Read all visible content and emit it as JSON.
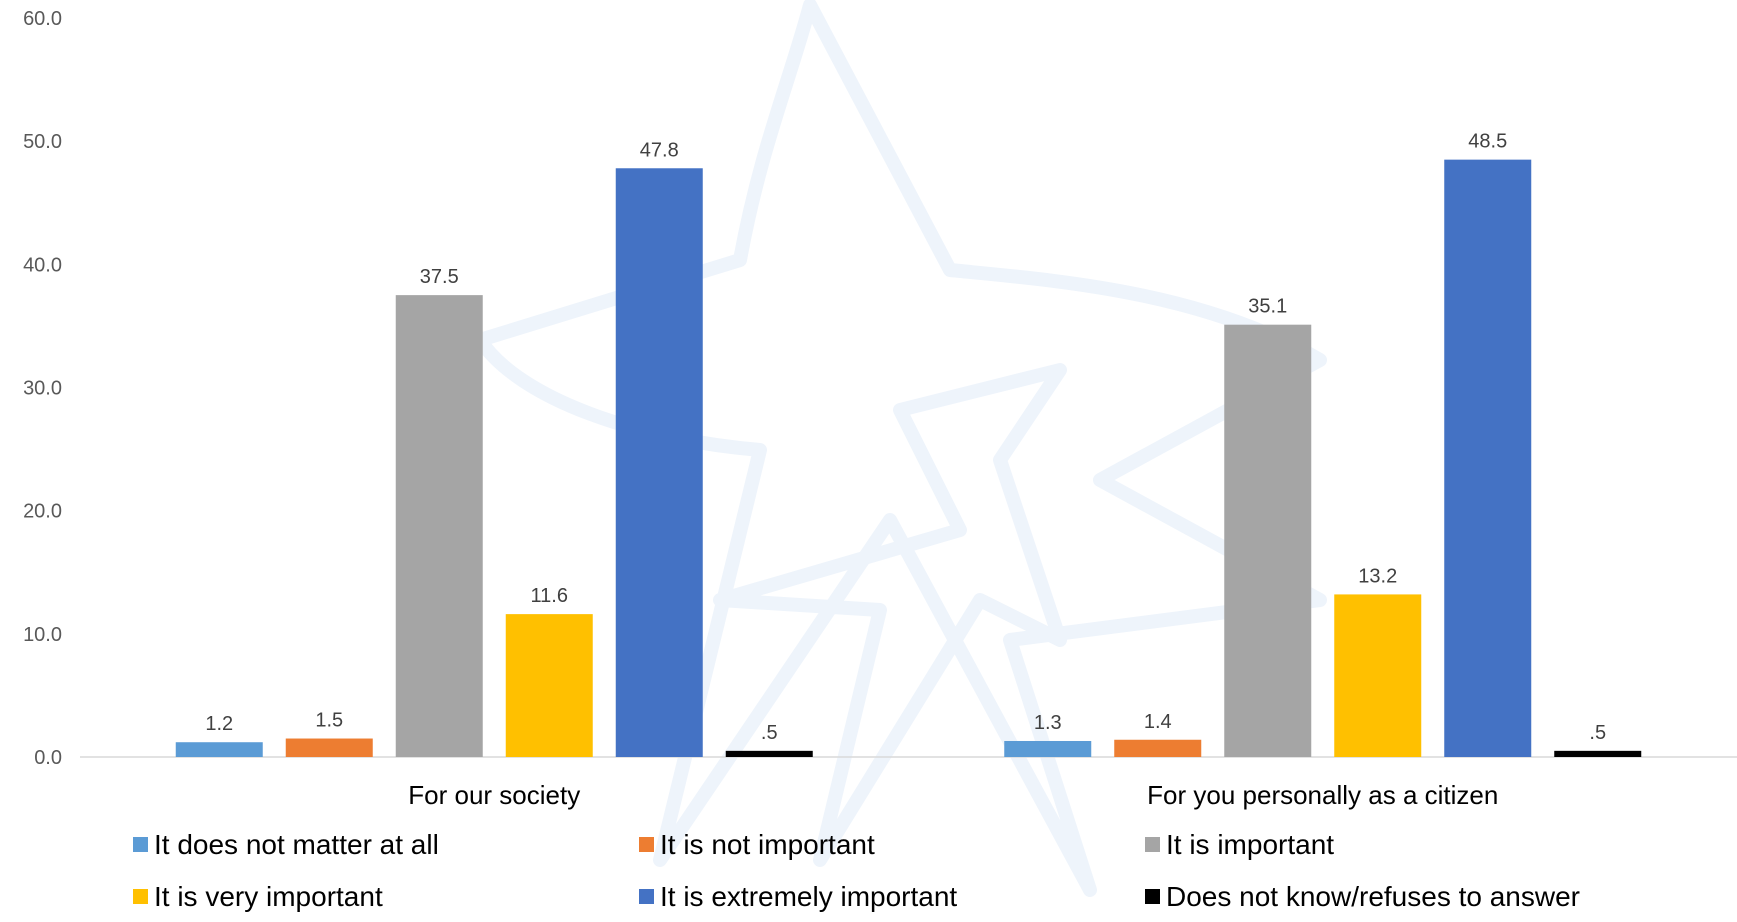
{
  "chart_data": {
    "type": "bar",
    "categories": [
      "For our society",
      "For you personally as a citizen"
    ],
    "series": [
      {
        "name": "It does not matter at all",
        "color": "#5b9bd5",
        "values": [
          1.2,
          1.3
        ],
        "labels": [
          "1.2",
          "1.3"
        ]
      },
      {
        "name": "It is not important",
        "color": "#ed7d31",
        "values": [
          1.5,
          1.4
        ],
        "labels": [
          "1.5",
          "1.4"
        ]
      },
      {
        "name": "It is important",
        "color": "#a5a5a5",
        "values": [
          37.5,
          35.1
        ],
        "labels": [
          "37.5",
          "35.1"
        ]
      },
      {
        "name": "It is very important",
        "color": "#ffc000",
        "values": [
          11.6,
          13.2
        ],
        "labels": [
          "11.6",
          "13.2"
        ]
      },
      {
        "name": "It is extremely important",
        "color": "#4472c4",
        "values": [
          47.8,
          48.5
        ],
        "labels": [
          "47.8",
          "48.5"
        ]
      },
      {
        "name": "Does not know/refuses to answer",
        "color": "#000000",
        "values": [
          0.5,
          0.5
        ],
        "labels": [
          ".5",
          ".5"
        ]
      }
    ],
    "ylim": [
      0,
      60
    ],
    "yticks": [
      "0.0",
      "10.0",
      "20.0",
      "30.0",
      "40.0",
      "50.0",
      "60.0"
    ],
    "grid": false,
    "legend_position": "bottom",
    "title": "",
    "xlabel": "",
    "ylabel": ""
  }
}
